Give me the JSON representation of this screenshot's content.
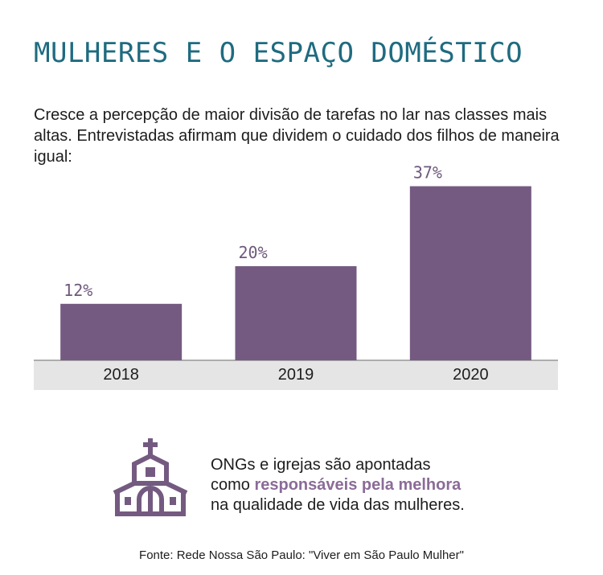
{
  "title": "MULHERES E O ESPAÇO DOMÉSTICO",
  "subtitle": "Cresce a percepção de maior divisão de tarefas no lar nas classes mais altas. Entrevistadas afirmam que dividem o cuidado dos filhos de maneira igual:",
  "chart_data": {
    "type": "bar",
    "categories": [
      "2018",
      "2019",
      "2020"
    ],
    "values": [
      12,
      20,
      37
    ],
    "value_labels": [
      "12%",
      "20%",
      "37%"
    ],
    "unit": "%",
    "ylim": [
      0,
      40
    ],
    "grid": false,
    "legend": "none",
    "bar_color": "#745a80",
    "axis_band_color": "#e5e5e5"
  },
  "note": {
    "icon": "church-icon",
    "line1": "ONGs e igrejas são apontadas",
    "line2_prefix": "como ",
    "line2_highlight": "responsáveis pela melhora",
    "line3": "na qualidade de vida das mulheres.",
    "highlight_color": "#8b6b98"
  },
  "source": "Fonte: Rede Nossa São Paulo: \"Viver em São Paulo Mulher\""
}
